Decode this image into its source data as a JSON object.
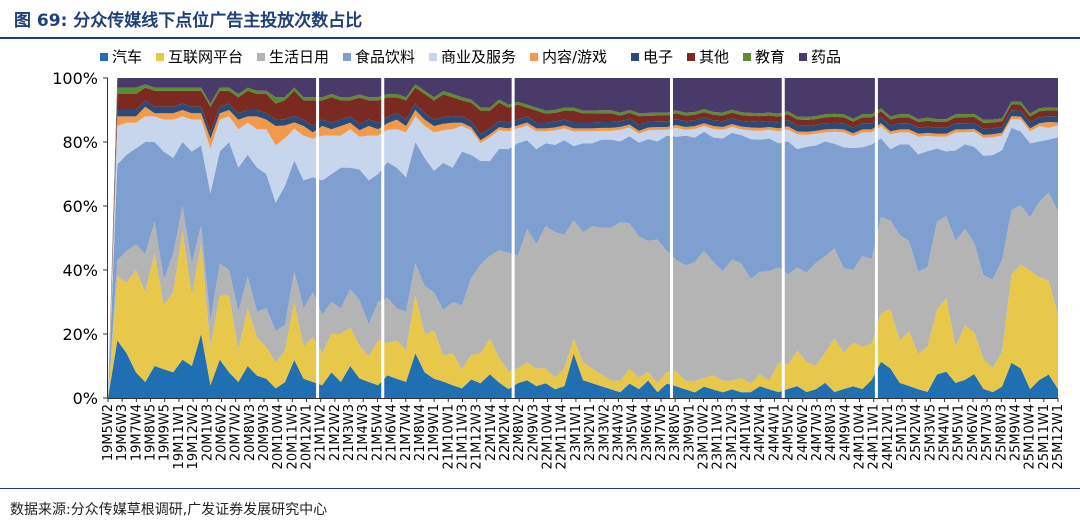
{
  "header": {
    "title": "图 69:  分众传媒线下点位广告主投放次数占比"
  },
  "footer": {
    "source": "数据来源:分众传媒草根调研,广发证券发展研究中心"
  },
  "chart_data": {
    "type": "area",
    "stacked": "percent",
    "ylim": [
      0,
      100
    ],
    "yticks": [
      "0%",
      "20%",
      "40%",
      "60%",
      "80%",
      "100%"
    ],
    "legend_position": "top",
    "series": [
      {
        "name": "汽车",
        "color": "#1f6fb2",
        "values": [
          0,
          18,
          14,
          8,
          5,
          10,
          9,
          8,
          12,
          10,
          20,
          4,
          12,
          8,
          5,
          10,
          7,
          6,
          3,
          5,
          12,
          6,
          5,
          4,
          8,
          5,
          10,
          6,
          5,
          4,
          7,
          6,
          5,
          14,
          8,
          6,
          5,
          4,
          3,
          6,
          5,
          8,
          5,
          3,
          5,
          6,
          4,
          5,
          3,
          4,
          15,
          6,
          5,
          4,
          3,
          2,
          5,
          3,
          6,
          2,
          5,
          4,
          3,
          2,
          4,
          3,
          2,
          3,
          2,
          2,
          4,
          3,
          2,
          3,
          4,
          2,
          3,
          5,
          2,
          3,
          4,
          3,
          6,
          12,
          10,
          5,
          4,
          3,
          2,
          8,
          9,
          5,
          6,
          8,
          3,
          2,
          4,
          12,
          10,
          3,
          6,
          8,
          3
        ]
      },
      {
        "name": "互联网平台",
        "color": "#e8c84a",
        "values": [
          0,
          20,
          22,
          32,
          28,
          35,
          20,
          25,
          40,
          22,
          28,
          12,
          20,
          24,
          10,
          18,
          12,
          10,
          8,
          10,
          18,
          10,
          14,
          10,
          12,
          15,
          12,
          10,
          8,
          14,
          10,
          12,
          10,
          18,
          12,
          15,
          8,
          10,
          6,
          8,
          10,
          12,
          8,
          6,
          5,
          6,
          6,
          5,
          4,
          6,
          5,
          6,
          5,
          4,
          3,
          4,
          5,
          4,
          3,
          3,
          4,
          5,
          3,
          4,
          3,
          5,
          4,
          3,
          5,
          3,
          4,
          3,
          10,
          8,
          12,
          10,
          8,
          10,
          18,
          12,
          15,
          14,
          12,
          16,
          20,
          14,
          18,
          12,
          15,
          22,
          25,
          12,
          18,
          14,
          10,
          8,
          12,
          30,
          35,
          40,
          34,
          32,
          25
        ]
      },
      {
        "name": "生活日用",
        "color": "#b4b4b4",
        "values": [
          0,
          5,
          10,
          8,
          12,
          10,
          8,
          12,
          8,
          10,
          6,
          8,
          10,
          8,
          12,
          10,
          8,
          12,
          10,
          8,
          10,
          12,
          14,
          12,
          10,
          8,
          12,
          14,
          10,
          12,
          14,
          10,
          12,
          10,
          15,
          12,
          14,
          16,
          20,
          25,
          30,
          28,
          35,
          40,
          38,
          45,
          42,
          48,
          50,
          45,
          40,
          44,
          48,
          50,
          52,
          55,
          50,
          48,
          45,
          50,
          42,
          38,
          40,
          42,
          45,
          40,
          38,
          42,
          40,
          36,
          35,
          38,
          32,
          30,
          28,
          30,
          35,
          32,
          30,
          28,
          25,
          30,
          28,
          32,
          30,
          35,
          30,
          28,
          26,
          30,
          28,
          35,
          32,
          30,
          28,
          30,
          32,
          22,
          20,
          18,
          25,
          30,
          35
        ]
      },
      {
        "name": "食品饮料",
        "color": "#7f9fd1",
        "values": [
          0,
          30,
          30,
          30,
          35,
          25,
          40,
          30,
          20,
          35,
          25,
          40,
          35,
          40,
          45,
          38,
          45,
          42,
          40,
          44,
          35,
          40,
          36,
          42,
          40,
          44,
          38,
          40,
          45,
          40,
          42,
          44,
          42,
          38,
          40,
          38,
          45,
          42,
          48,
          40,
          35,
          32,
          33,
          35,
          38,
          30,
          32,
          28,
          30,
          32,
          25,
          30,
          28,
          30,
          30,
          28,
          30,
          32,
          35,
          34,
          40,
          42,
          45,
          44,
          42,
          44,
          46,
          44,
          45,
          48,
          45,
          46,
          42,
          44,
          40,
          42,
          40,
          38,
          35,
          40,
          42,
          36,
          38,
          26,
          24,
          30,
          32,
          40,
          38,
          25,
          22,
          30,
          28,
          32,
          40,
          42,
          38,
          28,
          25,
          25,
          20,
          18,
          25
        ]
      },
      {
        "name": "商业及服务",
        "color": "#c7d6ec",
        "values": [
          0,
          12,
          10,
          8,
          8,
          8,
          10,
          12,
          8,
          10,
          8,
          14,
          10,
          8,
          12,
          10,
          12,
          14,
          18,
          15,
          10,
          14,
          12,
          14,
          12,
          10,
          12,
          10,
          14,
          12,
          10,
          12,
          14,
          8,
          10,
          12,
          10,
          12,
          8,
          8,
          6,
          8,
          6,
          6,
          5,
          5,
          6,
          4,
          5,
          4,
          5,
          4,
          4,
          3,
          3,
          4,
          3,
          3,
          3,
          4,
          2,
          3,
          2,
          3,
          2,
          3,
          3,
          2,
          2,
          3,
          3,
          3,
          4,
          4,
          5,
          4,
          4,
          3,
          4,
          5,
          4,
          5,
          4,
          4,
          5,
          4,
          4,
          6,
          5,
          4,
          5,
          6,
          4,
          5,
          6,
          6,
          5,
          3,
          4,
          4,
          5,
          4,
          4
        ]
      },
      {
        "name": "内容/游戏",
        "color": "#f39a4a",
        "values": [
          0,
          3,
          2,
          2,
          3,
          1,
          2,
          2,
          2,
          2,
          2,
          3,
          2,
          2,
          3,
          2,
          4,
          3,
          6,
          4,
          2,
          3,
          2,
          3,
          2,
          3,
          2,
          2,
          3,
          2,
          2,
          3,
          2,
          2,
          2,
          2,
          2,
          2,
          1,
          1,
          1,
          1,
          1,
          1,
          1,
          1,
          1,
          1,
          1,
          1,
          1,
          1,
          1,
          1,
          1,
          1,
          1,
          1,
          1,
          1,
          1,
          1,
          1,
          1,
          1,
          1,
          1,
          1,
          1,
          1,
          1,
          1,
          1,
          1,
          1,
          1,
          1,
          1,
          1,
          1,
          1,
          1,
          1,
          1,
          1,
          1,
          1,
          1,
          1,
          1,
          1,
          1,
          1,
          1,
          1,
          1,
          1,
          1,
          1,
          1,
          1,
          2,
          1
        ]
      },
      {
        "name": "电子",
        "color": "#2a4a7a",
        "values": [
          0,
          2,
          2,
          2,
          2,
          2,
          2,
          2,
          2,
          2,
          2,
          2,
          2,
          2,
          2,
          2,
          2,
          2,
          2,
          2,
          2,
          2,
          2,
          2,
          2,
          2,
          2,
          2,
          2,
          2,
          2,
          2,
          2,
          2,
          2,
          2,
          2,
          2,
          2,
          2,
          2,
          2,
          2,
          2,
          2,
          2,
          2,
          2,
          2,
          2,
          2,
          2,
          2,
          2,
          2,
          2,
          2,
          2,
          2,
          2,
          2,
          2,
          2,
          2,
          2,
          2,
          2,
          2,
          2,
          2,
          2,
          2,
          2,
          2,
          2,
          2,
          2,
          2,
          2,
          2,
          2,
          2,
          2,
          2,
          2,
          2,
          2,
          2,
          2,
          2,
          2,
          2,
          2,
          2,
          2,
          2,
          2,
          2,
          2,
          2,
          2,
          2,
          2
        ]
      },
      {
        "name": "其他",
        "color": "#7b2a22",
        "values": [
          0,
          5,
          5,
          5,
          4,
          5,
          5,
          5,
          4,
          5,
          5,
          8,
          5,
          4,
          5,
          6,
          5,
          6,
          5,
          6,
          8,
          6,
          8,
          6,
          8,
          6,
          5,
          8,
          6,
          7,
          6,
          5,
          6,
          5,
          6,
          6,
          7,
          6,
          5,
          6,
          8,
          6,
          6,
          5,
          5,
          3,
          4,
          3,
          3,
          3,
          4,
          3,
          3,
          3,
          3,
          2,
          2,
          3,
          2,
          2,
          2,
          2,
          2,
          2,
          2,
          2,
          2,
          2,
          2,
          2,
          2,
          2,
          2,
          2,
          2,
          2,
          2,
          2,
          2,
          2,
          2,
          2,
          2,
          2,
          2,
          2,
          2,
          2,
          2,
          2,
          2,
          2,
          2,
          2,
          2,
          2,
          2,
          2,
          2,
          2,
          2,
          2,
          2
        ]
      },
      {
        "name": "教育",
        "color": "#5d8a36",
        "values": [
          0,
          2,
          2,
          2,
          1,
          1,
          1,
          1,
          1,
          1,
          1,
          1,
          1,
          1,
          1,
          1,
          1,
          1,
          2,
          1,
          1,
          1,
          1,
          1,
          1,
          1,
          1,
          1,
          1,
          1,
          1,
          1,
          1,
          1,
          1,
          1,
          1,
          1,
          1,
          1,
          1,
          1,
          1,
          1,
          1,
          1,
          1,
          1,
          1,
          1,
          1,
          1,
          1,
          1,
          1,
          1,
          1,
          1,
          1,
          1,
          1,
          1,
          1,
          1,
          1,
          1,
          1,
          1,
          1,
          1,
          1,
          1,
          1,
          1,
          1,
          1,
          1,
          1,
          1,
          1,
          1,
          1,
          1,
          1,
          1,
          1,
          1,
          1,
          1,
          1,
          1,
          1,
          1,
          1,
          1,
          1,
          1,
          1,
          1,
          1,
          1,
          1,
          1
        ]
      },
      {
        "name": "药品",
        "color": "#4a3a6a",
        "values": [
          0,
          3,
          3,
          3,
          2,
          3,
          3,
          3,
          3,
          3,
          3,
          8,
          3,
          3,
          5,
          3,
          4,
          4,
          6,
          6,
          3,
          6,
          6,
          6,
          5,
          6,
          6,
          5,
          6,
          6,
          5,
          5,
          6,
          2,
          4,
          6,
          4,
          5,
          6,
          7,
          10,
          10,
          7,
          9,
          8,
          9,
          10,
          11,
          11,
          10,
          10,
          11,
          11,
          11,
          11,
          12,
          11,
          12,
          12,
          12,
          12,
          11,
          12,
          12,
          11,
          12,
          12,
          11,
          12,
          12,
          12,
          12,
          12,
          11,
          13,
          13,
          13,
          12,
          12,
          12,
          14,
          12,
          12,
          10,
          13,
          12,
          12,
          14,
          13,
          14,
          14,
          12,
          12,
          12,
          14,
          14,
          14,
          8,
          8,
          12,
          10,
          10,
          10
        ]
      }
    ],
    "x_labels": [
      "19M5W2",
      "19M6W3",
      "19M7W4",
      "19M8W5",
      "19M9W5",
      "19M11W1",
      "19M12W2",
      "20M1W3",
      "20M6W2",
      "20M7W2",
      "20M8W3",
      "20M9W3",
      "20M10W4",
      "20M11W5",
      "20M12W1",
      "21M1W2",
      "21M2W2",
      "21M3W3",
      "21M4W3",
      "21M5W4",
      "21M6W4",
      "21M7W4",
      "21M8W4",
      "21M9W1",
      "21M10W1",
      "21M11W3",
      "21M12W3",
      "22M1W4",
      "22M2W4",
      "22M8W2",
      "22M9W3",
      "22M10W4",
      "22M11W4",
      "23M1W1",
      "23M2W1",
      "23M3W2",
      "23M4W3",
      "23M5W4",
      "23M6W4",
      "23M7W5",
      "23M8W5",
      "23M9W1",
      "23M10W2",
      "23M11W3",
      "23M12W3",
      "24M1W4",
      "24M2W4",
      "24M4W1",
      "24M5W2",
      "24M6W2",
      "24M7W3",
      "24M8W3",
      "24M9W4",
      "24M10W4",
      "24M11W1",
      "24M12W1",
      "25M1W3",
      "25M2W4",
      "25M3W5",
      "25M4W1",
      "25M5W1",
      "25M6W2",
      "25M7W3",
      "25M8W3",
      "25M9W4",
      "25M10W4",
      "25M11W1",
      "25M12W1"
    ],
    "gaps_after_index": [
      22,
      29,
      43,
      60,
      72,
      82
    ]
  }
}
